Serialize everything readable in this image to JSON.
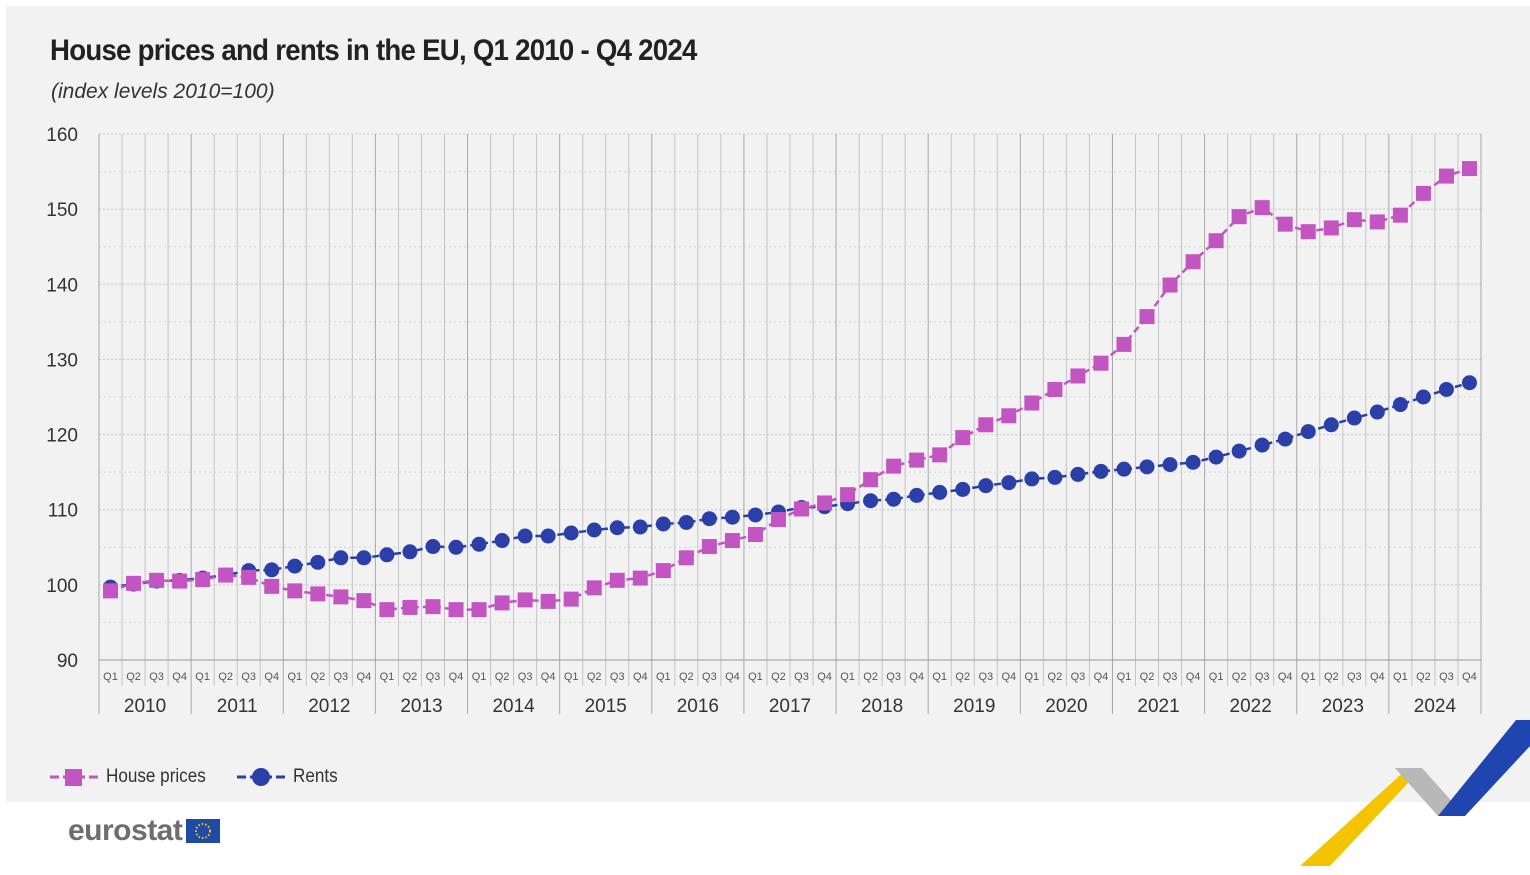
{
  "header": {
    "title": "House prices and rents in the EU, Q1 2010 - Q4 2024",
    "subtitle": "(index levels 2010=100)"
  },
  "logo": {
    "text": "eurostat"
  },
  "colors": {
    "house_prices": "#c355c3",
    "rents": "#2a3fa8",
    "background": "#f2f2f2"
  },
  "chart_data": {
    "type": "line",
    "title": "House prices and rents in the EU, Q1 2010 - Q4 2024",
    "subtitle": "(index levels 2010=100)",
    "quarter_labels": [
      "Q1",
      "Q2",
      "Q3",
      "Q4"
    ],
    "years": [
      "2010",
      "2011",
      "2012",
      "2013",
      "2014",
      "2015",
      "2016",
      "2017",
      "2018",
      "2019",
      "2020",
      "2021",
      "2022",
      "2023",
      "2024"
    ],
    "ylim": [
      90,
      160
    ],
    "yticks": [
      90,
      100,
      110,
      120,
      130,
      140,
      150,
      160
    ],
    "grid": true,
    "legend_position": "bottom-left",
    "series": [
      {
        "name": "House prices",
        "marker": "square",
        "color": "#c355c3",
        "values": [
          99.2,
          100.2,
          100.6,
          100.5,
          100.7,
          101.3,
          101.0,
          99.8,
          99.2,
          98.8,
          98.4,
          97.9,
          96.7,
          97.0,
          97.1,
          96.7,
          96.7,
          97.6,
          98.0,
          97.8,
          98.1,
          99.6,
          100.6,
          100.9,
          101.9,
          103.6,
          105.1,
          105.9,
          106.7,
          108.7,
          110.1,
          110.9,
          112.0,
          114.0,
          115.8,
          116.6,
          117.3,
          119.6,
          121.3,
          122.5,
          124.2,
          126.0,
          127.8,
          129.5,
          132.0,
          135.7,
          139.9,
          143.0,
          145.8,
          149.0,
          150.2,
          148.0,
          147.0,
          147.5,
          148.6,
          148.3,
          149.2,
          152.1,
          154.4,
          155.4
        ]
      },
      {
        "name": "Rents",
        "marker": "circle",
        "color": "#2a3fa8",
        "values": [
          99.7,
          100.1,
          100.5,
          100.6,
          100.9,
          101.3,
          101.9,
          102.0,
          102.5,
          103.0,
          103.6,
          103.6,
          104.0,
          104.4,
          105.1,
          105.0,
          105.4,
          105.9,
          106.5,
          106.5,
          106.9,
          107.3,
          107.6,
          107.7,
          108.1,
          108.3,
          108.8,
          109.0,
          109.3,
          109.7,
          110.3,
          110.4,
          110.8,
          111.2,
          111.4,
          111.9,
          112.3,
          112.7,
          113.2,
          113.6,
          114.1,
          114.3,
          114.7,
          115.1,
          115.4,
          115.7,
          116.0,
          116.3,
          117.0,
          117.8,
          118.6,
          119.4,
          120.4,
          121.3,
          122.2,
          123.0,
          124.0,
          125.0,
          126.0,
          126.9
        ]
      }
    ]
  }
}
